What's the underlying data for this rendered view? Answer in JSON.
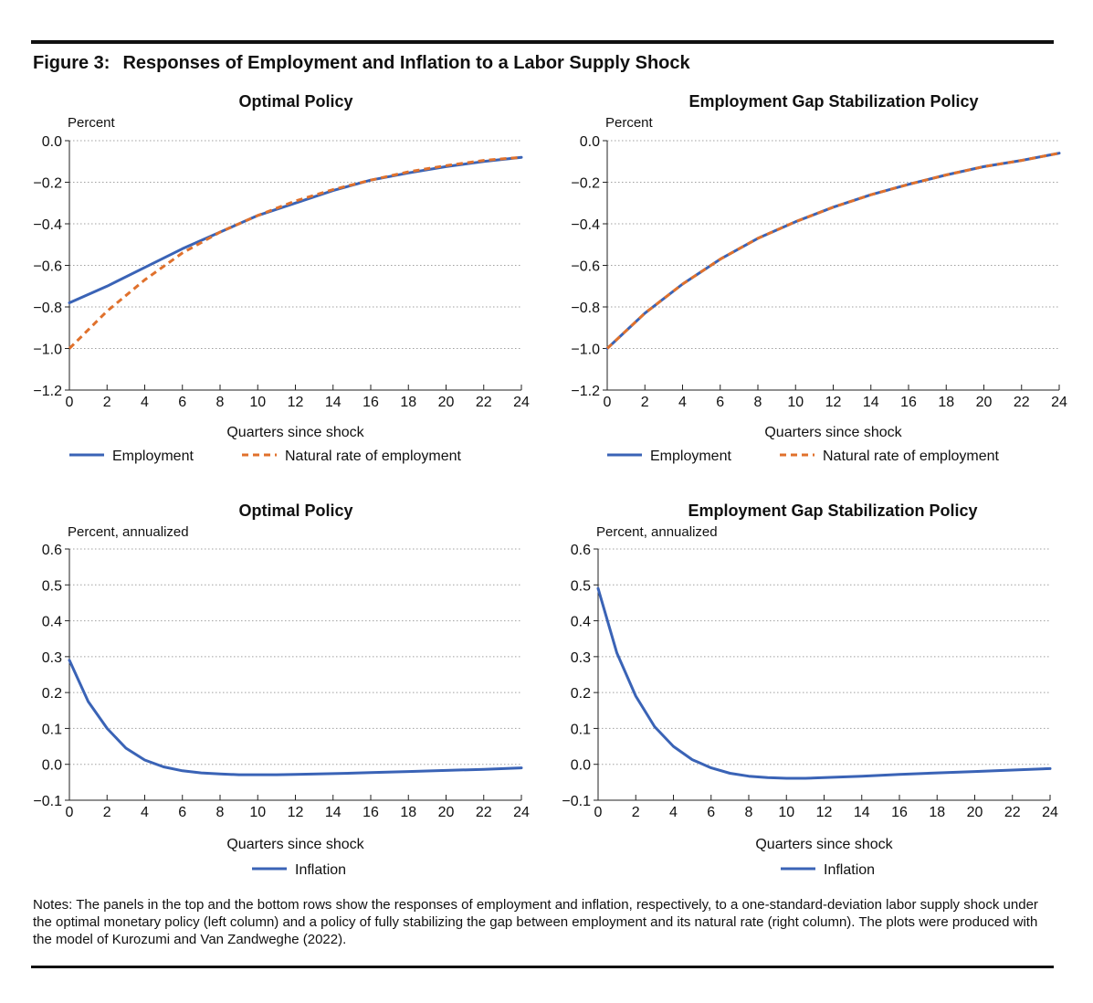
{
  "figure": {
    "label": "Figure 3:",
    "title": "Responses of Employment and Inflation to a Labor Supply Shock",
    "notes": "Notes: The panels in the top and the bottom rows show the responses of employment and inflation, respectively, to a one-standard-deviation labor supply shock under the optimal monetary policy (left column) and a policy of fully stabilizing the gap between employment and its natural rate (right column). The plots were produced with the model of Kurozumi and Van Zandweghe (2022)."
  },
  "colors": {
    "employment": "#3a63b6",
    "natural": "#e0712c",
    "inflation": "#3a63b6",
    "grid": "#a0a0a0",
    "axis": "#222222"
  },
  "chart_data": [
    {
      "type": "line",
      "title": "Optimal Policy",
      "ylabel": "Percent",
      "xlabel": "Quarters since shock",
      "xlim": [
        0,
        24
      ],
      "ylim": [
        -1.2,
        0.0
      ],
      "xticks": [
        0,
        2,
        4,
        6,
        8,
        10,
        12,
        14,
        16,
        18,
        20,
        22,
        24
      ],
      "yticks": [
        0.0,
        -0.2,
        -0.4,
        -0.6,
        -0.8,
        -1.0,
        -1.2
      ],
      "ytick_labels": [
        "0.0",
        "−0.2",
        "−0.4",
        "−0.6",
        "−0.8",
        "−1.0",
        "−1.2"
      ],
      "grid": "horizontal dotted",
      "legend_position": "bottom",
      "x": [
        0,
        2,
        4,
        6,
        8,
        10,
        12,
        14,
        16,
        18,
        20,
        22,
        24
      ],
      "series": [
        {
          "name": "Employment",
          "style": "solid",
          "color": "#3a63b6",
          "values": [
            -0.78,
            -0.7,
            -0.61,
            -0.52,
            -0.44,
            -0.36,
            -0.3,
            -0.24,
            -0.19,
            -0.155,
            -0.125,
            -0.1,
            -0.08
          ]
        },
        {
          "name": "Natural rate of employment",
          "style": "dashed",
          "color": "#e0712c",
          "values": [
            -1.0,
            -0.82,
            -0.67,
            -0.54,
            -0.44,
            -0.36,
            -0.29,
            -0.235,
            -0.19,
            -0.15,
            -0.12,
            -0.095,
            -0.08
          ]
        }
      ]
    },
    {
      "type": "line",
      "title": "Employment Gap Stabilization Policy",
      "ylabel": "Percent",
      "xlabel": "Quarters since shock",
      "xlim": [
        0,
        24
      ],
      "ylim": [
        -1.2,
        0.0
      ],
      "xticks": [
        0,
        2,
        4,
        6,
        8,
        10,
        12,
        14,
        16,
        18,
        20,
        22,
        24
      ],
      "yticks": [
        0.0,
        -0.2,
        -0.4,
        -0.6,
        -0.8,
        -1.0,
        -1.2
      ],
      "ytick_labels": [
        "0.0",
        "−0.2",
        "−0.4",
        "−0.6",
        "−0.8",
        "−1.0",
        "−1.2"
      ],
      "grid": "horizontal dotted",
      "legend_position": "bottom",
      "x": [
        0,
        2,
        4,
        6,
        8,
        10,
        12,
        14,
        16,
        18,
        20,
        22,
        24
      ],
      "series": [
        {
          "name": "Employment",
          "style": "solid",
          "color": "#3a63b6",
          "values": [
            -1.0,
            -0.83,
            -0.69,
            -0.57,
            -0.47,
            -0.39,
            -0.32,
            -0.26,
            -0.21,
            -0.165,
            -0.125,
            -0.095,
            -0.06
          ]
        },
        {
          "name": "Natural rate of employment",
          "style": "dashed",
          "color": "#e0712c",
          "values": [
            -1.0,
            -0.83,
            -0.69,
            -0.57,
            -0.47,
            -0.39,
            -0.32,
            -0.26,
            -0.21,
            -0.165,
            -0.125,
            -0.095,
            -0.06
          ]
        }
      ]
    },
    {
      "type": "line",
      "title": "Optimal Policy",
      "ylabel": "Percent, annualized",
      "xlabel": "Quarters since shock",
      "xlim": [
        0,
        24
      ],
      "ylim": [
        -0.1,
        0.6
      ],
      "xticks": [
        0,
        2,
        4,
        6,
        8,
        10,
        12,
        14,
        16,
        18,
        20,
        22,
        24
      ],
      "yticks": [
        0.6,
        0.5,
        0.4,
        0.3,
        0.2,
        0.1,
        0.0,
        -0.1
      ],
      "ytick_labels": [
        "0.6",
        "0.5",
        "0.4",
        "0.3",
        "0.2",
        "0.1",
        "0.0",
        "−0.1"
      ],
      "grid": "horizontal dotted",
      "legend_position": "bottom",
      "x": [
        0,
        1,
        2,
        3,
        4,
        5,
        6,
        7,
        8,
        9,
        10,
        11,
        12,
        14,
        16,
        18,
        20,
        22,
        24
      ],
      "series": [
        {
          "name": "Inflation",
          "style": "solid",
          "color": "#3a63b6",
          "values": [
            0.29,
            0.175,
            0.1,
            0.045,
            0.012,
            -0.007,
            -0.018,
            -0.024,
            -0.027,
            -0.029,
            -0.029,
            -0.029,
            -0.028,
            -0.026,
            -0.023,
            -0.02,
            -0.017,
            -0.014,
            -0.01
          ]
        }
      ]
    },
    {
      "type": "line",
      "title": "Employment Gap Stabilization Policy",
      "ylabel": "Percent, annualized",
      "xlabel": "Quarters since shock",
      "xlim": [
        0,
        24
      ],
      "ylim": [
        -0.1,
        0.6
      ],
      "xticks": [
        0,
        2,
        4,
        6,
        8,
        10,
        12,
        14,
        16,
        18,
        20,
        22,
        24
      ],
      "yticks": [
        0.6,
        0.5,
        0.4,
        0.3,
        0.2,
        0.1,
        0.0,
        -0.1
      ],
      "ytick_labels": [
        "0.6",
        "0.5",
        "0.4",
        "0.3",
        "0.2",
        "0.1",
        "0.0",
        "−0.1"
      ],
      "grid": "horizontal dotted",
      "legend_position": "bottom",
      "x": [
        0,
        1,
        2,
        3,
        4,
        5,
        6,
        7,
        8,
        9,
        10,
        11,
        12,
        14,
        16,
        18,
        20,
        22,
        24
      ],
      "series": [
        {
          "name": "Inflation",
          "style": "solid",
          "color": "#3a63b6",
          "values": [
            0.49,
            0.31,
            0.19,
            0.105,
            0.05,
            0.013,
            -0.01,
            -0.025,
            -0.033,
            -0.037,
            -0.039,
            -0.039,
            -0.037,
            -0.033,
            -0.028,
            -0.024,
            -0.02,
            -0.016,
            -0.012
          ]
        }
      ]
    }
  ]
}
